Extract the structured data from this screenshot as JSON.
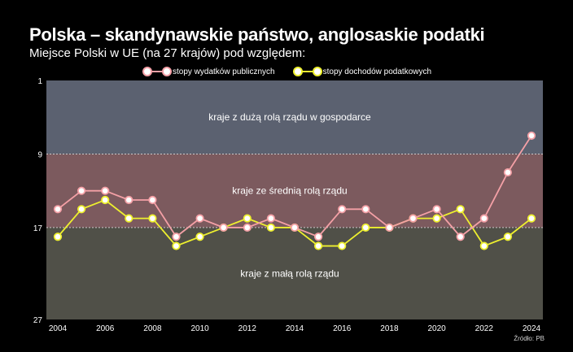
{
  "title": "Polska – skandynawskie państwo, anglosaskie podatki",
  "subtitle": "Miejsce Polski w UE (na 27 krajów) pod względem:",
  "source": "Źródło: PB",
  "colors": {
    "background": "#000000",
    "band_top": "#5b6170",
    "band_middle": "#7c5a5e",
    "band_bottom": "#505048",
    "series_wydatki": "#f4a0a6",
    "series_dochody": "#eef02e"
  },
  "chart_data": {
    "type": "line",
    "x": [
      2004,
      2005,
      2006,
      2007,
      2008,
      2009,
      2010,
      2011,
      2012,
      2013,
      2014,
      2015,
      2016,
      2017,
      2018,
      2019,
      2020,
      2021,
      2022,
      2023,
      2024
    ],
    "x_ticks": [
      "2004",
      "2006",
      "2008",
      "2010",
      "2012",
      "2014",
      "2016",
      "2018",
      "2020",
      "2022",
      "2024"
    ],
    "y_ticks": [
      "1",
      "9",
      "17",
      "27"
    ],
    "ylim": [
      1,
      27
    ],
    "y_reversed": true,
    "bands": [
      {
        "from": 1,
        "to": 9,
        "label": "kraje z dużą rolą rządu w gospodarce"
      },
      {
        "from": 9,
        "to": 17,
        "label": "kraje ze średnią rolą rządu"
      },
      {
        "from": 17,
        "to": 27,
        "label": "kraje z małą rolą rządu"
      }
    ],
    "series": [
      {
        "name": "stopy wydatków publicznych",
        "values": [
          15,
          13,
          13,
          14,
          14,
          18,
          16,
          17,
          17,
          16,
          17,
          18,
          15,
          15,
          17,
          16,
          15,
          18,
          16,
          11,
          7
        ]
      },
      {
        "name": "stopy dochodów podatkowych",
        "values": [
          18,
          15,
          14,
          16,
          16,
          19,
          18,
          17,
          16,
          17,
          17,
          19,
          19,
          17,
          17,
          16,
          16,
          15,
          19,
          18,
          16
        ]
      }
    ]
  }
}
